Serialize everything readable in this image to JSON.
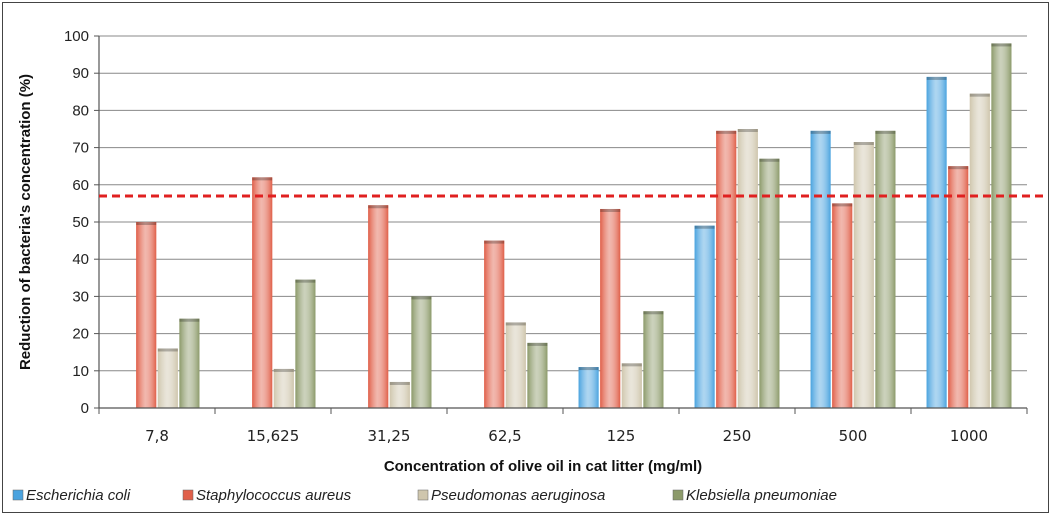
{
  "chart_data": {
    "type": "bar",
    "title": "",
    "xlabel": "Concentration of olive oil in cat litter (mg/ml)",
    "ylabel": "Reduction of bacteria's concentration (%)",
    "ylim": [
      0,
      100
    ],
    "yticks": [
      0,
      10,
      20,
      30,
      40,
      50,
      60,
      70,
      80,
      90,
      100
    ],
    "categories": [
      "7,8",
      "15,625",
      "31,25",
      "62,5",
      "125",
      "250",
      "500",
      "1000"
    ],
    "series": [
      {
        "name": "Escherichia coli",
        "color": "#4aa3df",
        "values": [
          0,
          0,
          0,
          0,
          11,
          49,
          74.5,
          89
        ]
      },
      {
        "name": "Staphylococcus aureus",
        "color": "#e0604a",
        "values": [
          50,
          62,
          54.5,
          45,
          53.5,
          74.5,
          55,
          65
        ]
      },
      {
        "name": "Pseudomonas aeruginosa",
        "color": "#cfc6ad",
        "values": [
          16,
          10.5,
          7,
          23,
          12,
          75,
          71.5,
          84.5
        ]
      },
      {
        "name": "Klebsiella pneumoniae",
        "color": "#8c9a6a",
        "values": [
          24,
          34.5,
          30,
          17.5,
          26,
          67,
          74.5,
          98
        ]
      }
    ],
    "reference_line": {
      "value": 57,
      "color": "#e02020",
      "style": "dashed"
    },
    "grid": true,
    "legend_position": "bottom"
  }
}
